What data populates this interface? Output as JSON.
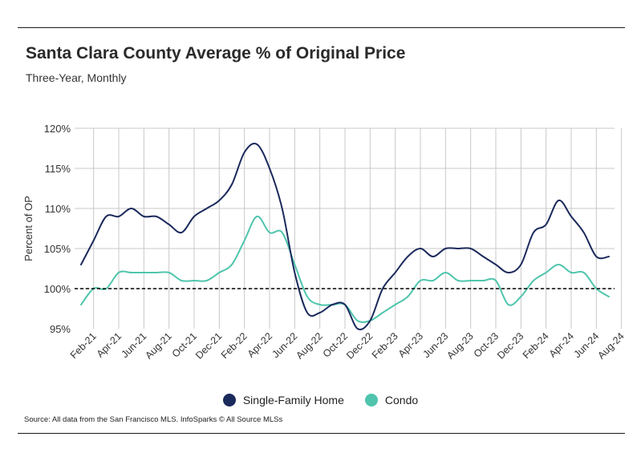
{
  "header": {
    "title": "Santa Clara County Average % of Original Price",
    "subtitle": "Three-Year, Monthly"
  },
  "legend": {
    "items": [
      {
        "label": "Single-Family Home",
        "color": "#1b2a5c"
      },
      {
        "label": "Condo",
        "color": "#4fc5ad"
      }
    ]
  },
  "footer": {
    "source": "Source:  All data from the San Francisco MLS. InfoSparks © All Source MLSs"
  },
  "colors": {
    "single_family": "#1b2a5c",
    "condo": "#4fc5ad",
    "grid": "#c8c8c8",
    "reference": "#000000"
  },
  "chart_data": {
    "type": "line",
    "title": "Santa Clara County Average % of Original Price",
    "subtitle": "Three-Year, Monthly",
    "xlabel": "",
    "ylabel": "Percent of OP",
    "ylim": [
      95,
      120
    ],
    "yticks": [
      120,
      115,
      110,
      105,
      100,
      95
    ],
    "ytick_labels": [
      "120%",
      "115%",
      "110%",
      "105%",
      "100%",
      "95%"
    ],
    "x_start": "Jan-21",
    "x_end": "Aug-24",
    "xtick_labels": [
      "Feb-21",
      "Apr-21",
      "Jun-21",
      "Aug-21",
      "Oct-21",
      "Dec-21",
      "Feb-22",
      "Apr-22",
      "Jun-22",
      "Aug-22",
      "Oct-22",
      "Dec-22",
      "Feb-23",
      "Apr-23",
      "Jun-23",
      "Aug-23",
      "Oct-23",
      "Dec-23",
      "Feb-24",
      "Apr-24",
      "Jun-24",
      "Aug-24"
    ],
    "reference_line": 100,
    "grid": true,
    "series": [
      {
        "name": "Single-Family Home",
        "values": [
          103,
          106,
          109,
          109,
          110,
          109,
          109,
          108,
          107,
          109,
          110,
          111,
          113,
          117,
          118,
          115,
          110,
          102,
          97,
          97,
          98,
          98,
          95,
          96,
          100,
          102,
          104,
          105,
          104,
          105,
          105,
          105,
          104,
          103,
          102,
          103,
          107,
          108,
          111,
          109,
          107,
          104,
          104
        ]
      },
      {
        "name": "Condo",
        "values": [
          98,
          100,
          100,
          102,
          102,
          102,
          102,
          102,
          101,
          101,
          101,
          102,
          103,
          106,
          109,
          107,
          107,
          103,
          99,
          98,
          98,
          98,
          96,
          96,
          97,
          98,
          99,
          101,
          101,
          102,
          101,
          101,
          101,
          101,
          98,
          99,
          101,
          102,
          103,
          102,
          102,
          100,
          99
        ]
      }
    ]
  }
}
